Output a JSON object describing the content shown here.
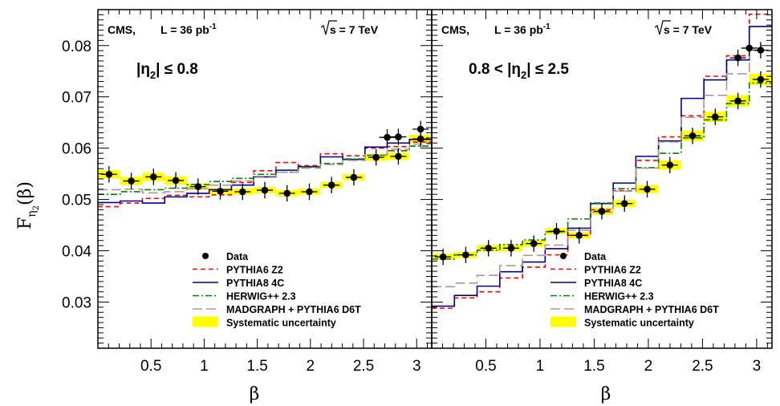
{
  "colors": {
    "data": "#000000",
    "pythia6": "#ff0000",
    "pythia8": "#00008b",
    "herwig": "#008000",
    "madgraph": "#b39696",
    "syst": "#ffff00"
  },
  "y_axis_title": "F",
  "y_axis_sub": "η",
  "y_axis_subsub": "2",
  "y_axis_arg": "(β)",
  "chart_data": [
    {
      "type": "line",
      "header_exp": "CMS,",
      "header_lumi": "L =  36 pb",
      "header_lumi_exp": "-1",
      "header_energy": "s = 7 TeV",
      "region_label": "|η",
      "region_label_sub": "2",
      "region_label_rest": "| ≤ 0.8",
      "xlabel": "β",
      "xlim": [
        0.0,
        3.14159
      ],
      "ylim": [
        0.021,
        0.087
      ],
      "x_tick_labels": [
        "0.5",
        "1",
        "1.5",
        "2",
        "2.5",
        "3"
      ],
      "y_tick_labels": [
        "0.03",
        "0.04",
        "0.05",
        "0.06",
        "0.07",
        "0.08"
      ],
      "bin_edges": [
        0.0,
        0.2094,
        0.4189,
        0.6283,
        0.8378,
        1.0472,
        1.2566,
        1.4661,
        1.6755,
        1.885,
        2.0944,
        2.3038,
        2.5133,
        2.7227,
        2.9322,
        3.1416
      ],
      "data": {
        "name": "Data",
        "y": [
          0.0549,
          0.0536,
          0.0544,
          0.0537,
          0.0525,
          0.0516,
          0.0515,
          0.0518,
          0.0512,
          0.0515,
          0.0528,
          0.0543,
          0.0582,
          0.0584,
          0.0618
        ],
        "err": [
          0.0016,
          0.0016,
          0.0016,
          0.0016,
          0.0016,
          0.0016,
          0.0016,
          0.0016,
          0.0016,
          0.0016,
          0.0016,
          0.0016,
          0.0016,
          0.0016,
          0.0016
        ],
        "syst": [
          0.0008,
          0.0008,
          0.0008,
          0.0008,
          0.0006,
          0.0006,
          0.0006,
          0.0006,
          0.0006,
          0.0006,
          0.0006,
          0.0006,
          0.0007,
          0.0007,
          0.0008
        ]
      },
      "extra_points": [
        {
          "x": 2.7227,
          "y": 0.0621
        },
        {
          "x": 2.8274,
          "y": 0.0622
        },
        {
          "x": 3.0369,
          "y": 0.0637
        }
      ],
      "series": [
        {
          "name": "PYTHIA6 Z2",
          "style": "dashed",
          "y": [
            0.0486,
            0.0493,
            0.0502,
            0.0508,
            0.0505,
            0.0509,
            0.0533,
            0.0556,
            0.0572,
            0.0566,
            0.0589,
            0.0585,
            0.06,
            0.0603,
            0.0612
          ]
        },
        {
          "name": "PYTHIA8 4C",
          "style": "solid",
          "y": [
            0.0494,
            0.0497,
            0.0493,
            0.0505,
            0.0512,
            0.0519,
            0.0528,
            0.0544,
            0.0557,
            0.0564,
            0.0583,
            0.0578,
            0.0602,
            0.061,
            0.0617
          ]
        },
        {
          "name": "HERWIG++ 2.3",
          "style": "dashdot",
          "y": [
            0.051,
            0.0515,
            0.0519,
            0.0522,
            0.0529,
            0.0535,
            0.0541,
            0.0549,
            0.0553,
            0.0563,
            0.057,
            0.0579,
            0.0586,
            0.0595,
            0.0604
          ]
        },
        {
          "name": "MADGRAPH + PYTHIA6 D6T",
          "style": "longdash",
          "y": [
            0.0519,
            0.052,
            0.0513,
            0.0515,
            0.0521,
            0.0528,
            0.0536,
            0.0545,
            0.0553,
            0.0561,
            0.0568,
            0.0576,
            0.0587,
            0.0598,
            0.0608
          ]
        }
      ],
      "legend": [
        "Data",
        "PYTHIA6 Z2",
        "PYTHIA8 4C",
        "HERWIG++ 2.3",
        "MADGRAPH + PYTHIA6 D6T",
        "Systematic uncertainty"
      ]
    },
    {
      "type": "line",
      "header_exp": "CMS,",
      "header_lumi": "L =  36 pb",
      "header_lumi_exp": "-1",
      "header_energy": "s = 7 TeV",
      "region_label": "0.8 < |η",
      "region_label_sub": "2",
      "region_label_rest": "| ≤ 2.5",
      "xlabel": "β",
      "xlim": [
        0.0,
        3.14159
      ],
      "ylim": [
        0.021,
        0.087
      ],
      "x_tick_labels": [
        "0.5",
        "1",
        "1.5",
        "2",
        "2.5",
        "3"
      ],
      "bin_edges": [
        0.0,
        0.2094,
        0.4189,
        0.6283,
        0.8378,
        1.0472,
        1.2566,
        1.4661,
        1.6755,
        1.885,
        2.0944,
        2.3038,
        2.5133,
        2.7227,
        2.9322,
        3.1416
      ],
      "data": {
        "name": "Data",
        "y": [
          0.0388,
          0.0392,
          0.0405,
          0.0405,
          0.0414,
          0.0438,
          0.043,
          0.0477,
          0.0492,
          0.052,
          0.0567,
          0.0624,
          0.0661,
          0.0692,
          0.0734
        ],
        "err": [
          0.0016,
          0.0016,
          0.0016,
          0.0016,
          0.0016,
          0.0016,
          0.0016,
          0.0016,
          0.0016,
          0.0016,
          0.0016,
          0.0016,
          0.0016,
          0.0016,
          0.0016
        ],
        "syst": [
          0.0006,
          0.0006,
          0.0006,
          0.0006,
          0.0006,
          0.0006,
          0.0006,
          0.0007,
          0.0007,
          0.0008,
          0.0009,
          0.001,
          0.001,
          0.0011,
          0.0011
        ]
      },
      "extra_points": [
        {
          "x": 2.8274,
          "y": 0.0776
        },
        {
          "x": 2.9322,
          "y": 0.0795
        },
        {
          "x": 3.0369,
          "y": 0.0791
        }
      ],
      "series": [
        {
          "name": "PYTHIA6 Z2",
          "style": "dashed",
          "y": [
            0.0288,
            0.0308,
            0.032,
            0.0347,
            0.0368,
            0.0392,
            0.043,
            0.048,
            0.0517,
            0.0576,
            0.0622,
            0.0663,
            0.074,
            0.078,
            0.0861
          ]
        },
        {
          "name": "PYTHIA8 4C",
          "style": "solid",
          "y": [
            0.0292,
            0.0313,
            0.0331,
            0.0359,
            0.0378,
            0.0404,
            0.0444,
            0.0492,
            0.0532,
            0.0584,
            0.0614,
            0.0697,
            0.0733,
            0.0772,
            0.0837
          ]
        },
        {
          "name": "HERWIG++ 2.3",
          "style": "dashdot",
          "y": [
            0.0384,
            0.0392,
            0.0401,
            0.0412,
            0.0421,
            0.0437,
            0.0462,
            0.0493,
            0.0521,
            0.0562,
            0.059,
            0.062,
            0.0655,
            0.0687,
            0.0727
          ]
        },
        {
          "name": "MADGRAPH + PYTHIA6 D6T",
          "style": "longdash",
          "y": [
            0.033,
            0.0337,
            0.0352,
            0.0371,
            0.0391,
            0.0411,
            0.044,
            0.0475,
            0.0516,
            0.0561,
            0.0612,
            0.066,
            0.0703,
            0.0745,
            0.079
          ]
        }
      ],
      "legend": [
        "Data",
        "PYTHIA6 Z2",
        "PYTHIA8 4C",
        "HERWIG++ 2.3",
        "MADGRAPH + PYTHIA6 D6T",
        "Systematic uncertainty"
      ]
    }
  ]
}
